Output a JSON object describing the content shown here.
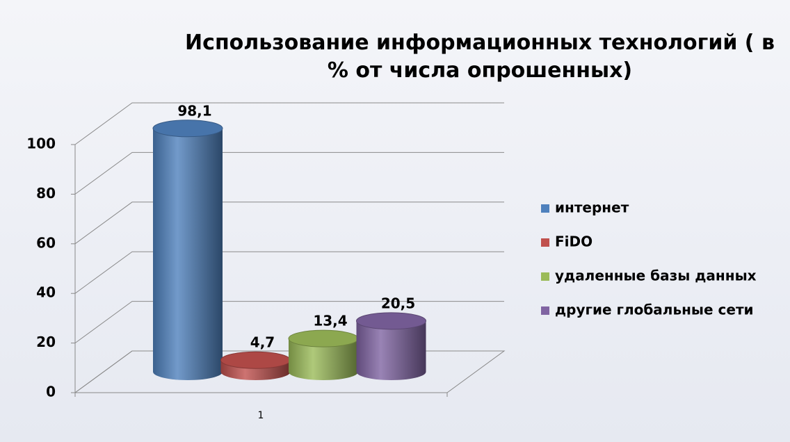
{
  "chart_data": {
    "type": "bar3d",
    "title": "Использование информационных технологий ( в % от числа опрошенных)",
    "categories": [
      "1"
    ],
    "series": [
      {
        "name": "интернет",
        "color": "#4f81bd",
        "values": [
          98.1
        ],
        "value_labels": [
          "98,1"
        ]
      },
      {
        "name": "FiDO",
        "color": "#c0504d",
        "values": [
          4.7
        ],
        "value_labels": [
          "4,7"
        ]
      },
      {
        "name": "удаленные базы данных",
        "color": "#9bbb59",
        "values": [
          13.4
        ],
        "value_labels": [
          "13,4"
        ]
      },
      {
        "name": "другие глобальные сети",
        "color": "#8064a2",
        "values": [
          20.5
        ],
        "value_labels": [
          "20,5"
        ]
      }
    ],
    "ylim": [
      0,
      100
    ],
    "yticks": [
      0,
      20,
      40,
      60,
      80,
      100
    ],
    "grid": true,
    "legend": "right"
  }
}
